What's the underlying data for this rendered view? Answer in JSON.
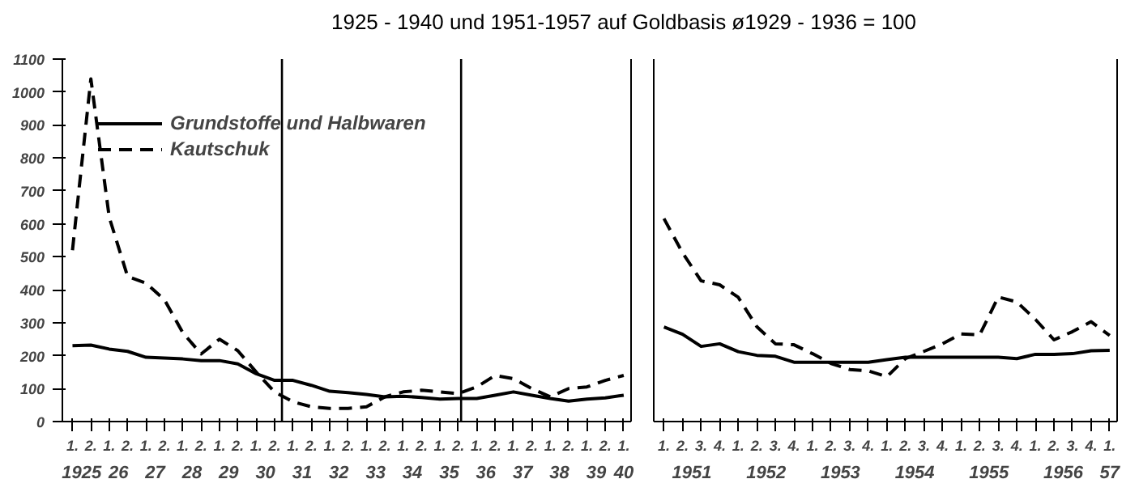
{
  "chart_data": [
    {
      "type": "line",
      "title": "1925 - 1940 und 1951-1957 auf Goldbasis ø1929 - 1936 = 100",
      "categories": [
        "1.",
        "2.",
        "1.",
        "2.",
        "1.",
        "2.",
        "1.",
        "2.",
        "1.",
        "2.",
        "1.",
        "2.",
        "1.",
        "2.",
        "1.",
        "2.",
        "1.",
        "2.",
        "1.",
        "2.",
        "1.",
        "2.",
        "1.",
        "2.",
        "1.",
        "2.",
        "1.",
        "2.",
        "1.",
        "2.",
        "1."
      ],
      "annotations": [
        "1925",
        "26",
        "27",
        "28",
        "29",
        "30",
        "31",
        "32",
        "33",
        "34",
        "35",
        "36",
        "37",
        "38",
        "39",
        "40"
      ],
      "series": [
        {
          "name": "Grundstoffe und Halbwaren",
          "color": "#000000",
          "line_style": "solid",
          "values": [
            230,
            232,
            220,
            213,
            195,
            193,
            190,
            185,
            185,
            175,
            145,
            125,
            125,
            110,
            92,
            88,
            82,
            75,
            77,
            73,
            68,
            70,
            70,
            80,
            90,
            80,
            70,
            62,
            68,
            72,
            80
          ]
        },
        {
          "name": "Kautschuk",
          "color": "#000000",
          "line_style": "dashed",
          "values": [
            520,
            1040,
            620,
            440,
            420,
            370,
            270,
            205,
            250,
            215,
            150,
            90,
            60,
            45,
            40,
            40,
            45,
            75,
            90,
            95,
            90,
            85,
            105,
            140,
            130,
            100,
            75,
            100,
            105,
            125,
            140
          ]
        }
      ],
      "ylim": [
        0,
        1100
      ],
      "yticks": [
        0,
        100,
        200,
        300,
        400,
        500,
        600,
        700,
        800,
        900,
        1000,
        1100
      ],
      "legend": "top left",
      "grid": false
    },
    {
      "type": "line",
      "categories": [
        "1.",
        "2.",
        "3.",
        "4.",
        "1.",
        "2.",
        "3.",
        "4.",
        "1.",
        "2.",
        "3.",
        "4.",
        "1.",
        "2.",
        "3.",
        "4.",
        "1.",
        "2.",
        "3.",
        "4.",
        "1.",
        "2.",
        "3.",
        "4.",
        "1."
      ],
      "annotations": [
        "1951",
        "1952",
        "1953",
        "1954",
        "1955",
        "1956",
        "57"
      ],
      "series": [
        {
          "color": "#000000",
          "line_style": "solid",
          "values": [
            287,
            265,
            228,
            236,
            212,
            201,
            198,
            180,
            180,
            180,
            180,
            180,
            188,
            195,
            195,
            195,
            195,
            195,
            195,
            191,
            204,
            204,
            206,
            215,
            216
          ]
        },
        {
          "color": "#000000",
          "line_style": "dashed",
          "values": [
            616,
            512,
            427,
            415,
            377,
            288,
            236,
            233,
            206,
            176,
            158,
            154,
            136,
            191,
            213,
            236,
            266,
            263,
            378,
            363,
            310,
            248,
            273,
            303,
            261
          ]
        }
      ],
      "ylim": [
        0,
        1100
      ],
      "tick_labels": "x",
      "grid": false
    }
  ]
}
